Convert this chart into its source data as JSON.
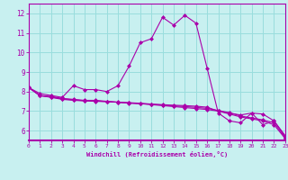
{
  "xlabel": "Windchill (Refroidissement éolien,°C)",
  "background_color": "#c8f0f0",
  "line_color": "#aa00aa",
  "grid_color": "#99dddd",
  "xlim": [
    0,
    23
  ],
  "ylim": [
    5.5,
    12.5
  ],
  "xticks": [
    0,
    1,
    2,
    3,
    4,
    5,
    6,
    7,
    8,
    9,
    10,
    11,
    12,
    13,
    14,
    15,
    16,
    17,
    18,
    19,
    20,
    21,
    22,
    23
  ],
  "yticks": [
    6,
    7,
    8,
    9,
    10,
    11,
    12
  ],
  "series": [
    {
      "x": [
        0,
        1,
        2,
        3,
        4,
        5,
        6,
        7,
        8,
        9,
        10,
        11,
        12,
        13,
        14,
        15,
        16,
        17,
        18,
        19,
        20,
        21,
        22,
        23
      ],
      "y": [
        8.2,
        7.9,
        7.8,
        7.7,
        8.3,
        8.1,
        8.1,
        8.0,
        8.3,
        9.3,
        10.5,
        10.7,
        11.8,
        11.4,
        11.9,
        11.5,
        9.2,
        6.9,
        6.5,
        6.4,
        6.9,
        6.3,
        6.5,
        5.7
      ]
    },
    {
      "x": [
        0,
        1,
        2,
        3,
        4,
        5,
        6,
        7,
        8,
        9,
        10,
        11,
        12,
        13,
        14,
        15,
        16,
        17,
        18,
        19,
        20,
        21,
        22,
        23
      ],
      "y": [
        8.2,
        7.8,
        7.75,
        7.65,
        7.6,
        7.55,
        7.55,
        7.5,
        7.45,
        7.4,
        7.38,
        7.35,
        7.33,
        7.3,
        7.28,
        7.25,
        7.2,
        7.0,
        6.9,
        6.8,
        6.9,
        6.85,
        6.5,
        5.75
      ]
    },
    {
      "x": [
        0,
        1,
        2,
        3,
        4,
        5,
        6,
        7,
        8,
        9,
        10,
        11,
        12,
        13,
        14,
        15,
        16,
        17,
        18,
        19,
        20,
        21,
        22,
        23
      ],
      "y": [
        8.2,
        7.8,
        7.7,
        7.6,
        7.55,
        7.52,
        7.5,
        7.48,
        7.45,
        7.42,
        7.38,
        7.33,
        7.28,
        7.23,
        7.18,
        7.13,
        7.08,
        7.0,
        6.85,
        6.7,
        6.6,
        6.5,
        6.3,
        5.6
      ]
    },
    {
      "x": [
        0,
        1,
        2,
        3,
        4,
        5,
        6,
        7,
        8,
        9,
        10,
        11,
        12,
        13,
        14,
        15,
        16,
        17,
        18,
        19,
        20,
        21,
        22,
        23
      ],
      "y": [
        8.2,
        7.78,
        7.72,
        7.62,
        7.58,
        7.53,
        7.52,
        7.49,
        7.46,
        7.43,
        7.4,
        7.36,
        7.31,
        7.27,
        7.23,
        7.19,
        7.14,
        7.03,
        6.92,
        6.75,
        6.65,
        6.55,
        6.4,
        5.65
      ]
    }
  ]
}
